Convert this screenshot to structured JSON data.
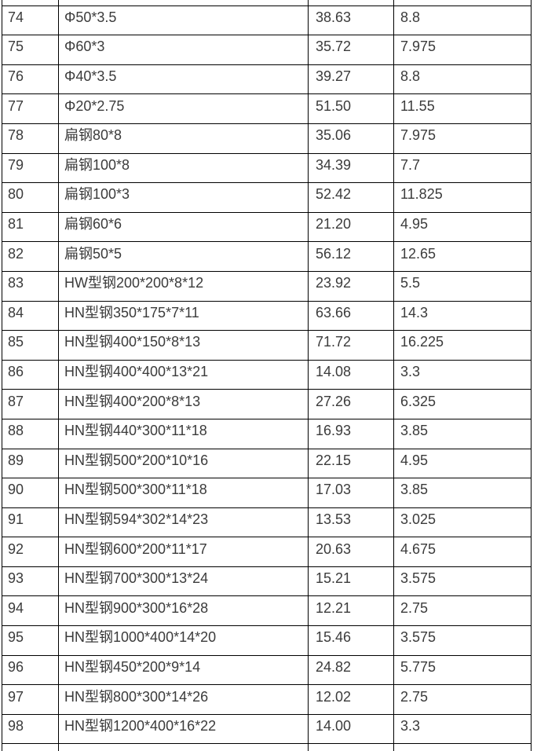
{
  "table": {
    "description": "steel-section-price-table-rows-74-98",
    "column_keys": [
      "index",
      "spec",
      "value1",
      "value2"
    ],
    "rows": [
      [
        "74",
        "Φ50*3.5",
        "38.63",
        "8.8"
      ],
      [
        "75",
        "Φ60*3",
        "35.72",
        "7.975"
      ],
      [
        "76",
        "Φ40*3.5",
        "39.27",
        "8.8"
      ],
      [
        "77",
        "Φ20*2.75",
        "51.50",
        "11.55"
      ],
      [
        "78",
        "扁钢80*8",
        "35.06",
        "7.975"
      ],
      [
        "79",
        "扁钢100*8",
        "34.39",
        "7.7"
      ],
      [
        "80",
        "扁钢100*3",
        "52.42",
        "11.825"
      ],
      [
        "81",
        "扁钢60*6",
        "21.20",
        "4.95"
      ],
      [
        "82",
        "扁钢50*5",
        "56.12",
        "12.65"
      ],
      [
        "83",
        "HW型钢200*200*8*12",
        "23.92",
        "5.5"
      ],
      [
        "84",
        "HN型钢350*175*7*11",
        "63.66",
        "14.3"
      ],
      [
        "85",
        "HN型钢400*150*8*13",
        "71.72",
        "16.225"
      ],
      [
        "86",
        "HN型钢400*400*13*21",
        "14.08",
        "3.3"
      ],
      [
        "87",
        "HN型钢400*200*8*13",
        "27.26",
        "6.325"
      ],
      [
        "88",
        "HN型钢440*300*11*18",
        "16.93",
        "3.85"
      ],
      [
        "89",
        "HN型钢500*200*10*16",
        "22.15",
        "4.95"
      ],
      [
        "90",
        "HN型钢500*300*11*18",
        "17.03",
        "3.85"
      ],
      [
        "91",
        "HN型钢594*302*14*23",
        "13.53",
        "3.025"
      ],
      [
        "92",
        "HN型钢600*200*11*17",
        "20.63",
        "4.675"
      ],
      [
        "93",
        "HN型钢700*300*13*24",
        "15.21",
        "3.575"
      ],
      [
        "94",
        "HN型钢900*300*16*28",
        "12.21",
        "2.75"
      ],
      [
        "95",
        "HN型钢1000*400*14*20",
        "15.46",
        "3.575"
      ],
      [
        "96",
        "HN型钢450*200*9*14",
        "24.82",
        "5.775"
      ],
      [
        "97",
        "HN型钢800*300*14*26",
        "12.02",
        "2.75"
      ],
      [
        "98",
        "HN型钢1200*400*16*22",
        "14.00",
        "3.3"
      ]
    ]
  },
  "colors": {
    "border": "#000000",
    "text": "#3b3b3b",
    "background": "#ffffff"
  }
}
